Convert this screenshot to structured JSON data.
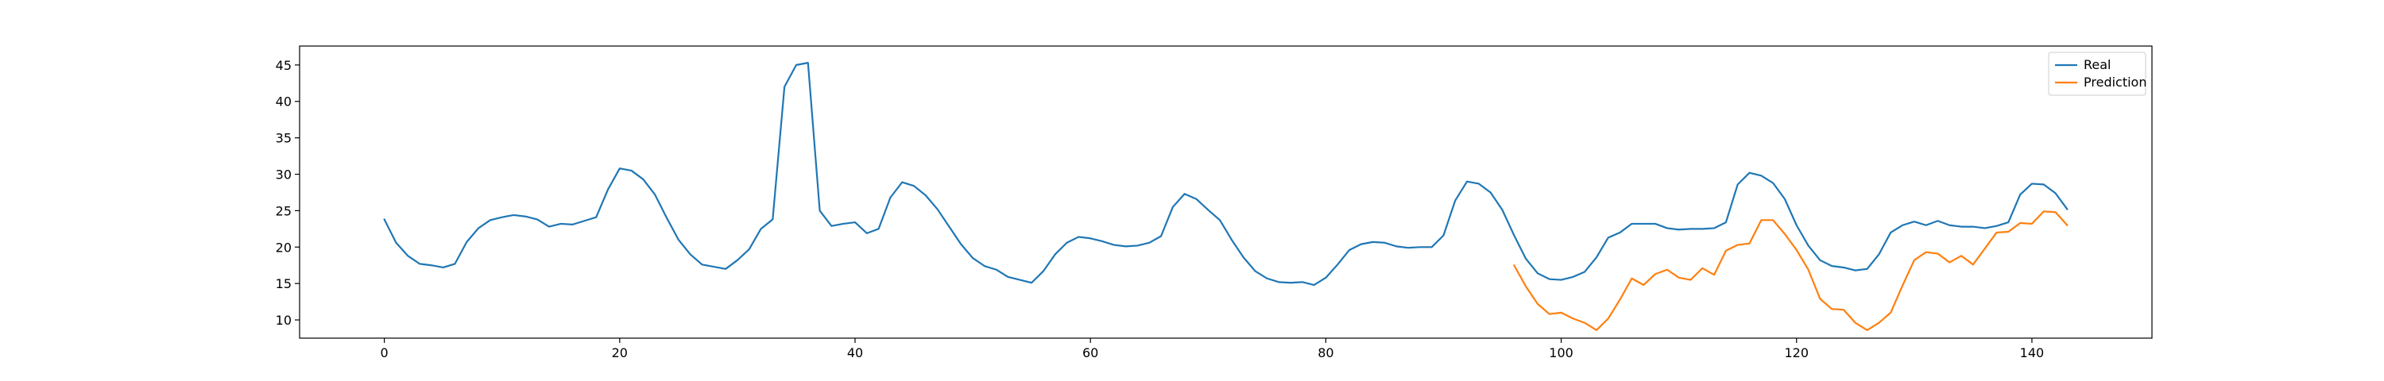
{
  "chart_data": {
    "type": "line",
    "title": "",
    "xlabel": "",
    "ylabel": "",
    "xlim": [
      -7.2,
      150.2
    ],
    "ylim": [
      7.5,
      47.6
    ],
    "xticks": [
      0,
      20,
      40,
      60,
      80,
      100,
      120,
      140
    ],
    "yticks": [
      10,
      15,
      20,
      25,
      30,
      35,
      40,
      45
    ],
    "grid": false,
    "legend_position": "top-right",
    "series": [
      {
        "name": "Real",
        "color": "#1f77b4",
        "x": [
          0,
          1,
          2,
          3,
          4,
          5,
          6,
          7,
          8,
          9,
          10,
          11,
          12,
          13,
          14,
          15,
          16,
          17,
          18,
          19,
          20,
          21,
          22,
          23,
          24,
          25,
          26,
          27,
          28,
          29,
          30,
          31,
          32,
          33,
          34,
          35,
          36,
          37,
          38,
          39,
          40,
          41,
          42,
          43,
          44,
          45,
          46,
          47,
          48,
          49,
          50,
          51,
          52,
          53,
          54,
          55,
          56,
          57,
          58,
          59,
          60,
          61,
          62,
          63,
          64,
          65,
          66,
          67,
          68,
          69,
          70,
          71,
          72,
          73,
          74,
          75,
          76,
          77,
          78,
          79,
          80,
          81,
          82,
          83,
          84,
          85,
          86,
          87,
          88,
          89,
          90,
          91,
          92,
          93,
          94,
          95,
          96,
          97,
          98,
          99,
          100,
          101,
          102,
          103,
          104,
          105,
          106,
          107,
          108,
          109,
          110,
          111,
          112,
          113,
          114,
          115,
          116,
          117,
          118,
          119,
          120,
          121,
          122,
          123,
          124,
          125,
          126,
          127,
          128,
          129,
          130,
          131,
          132,
          133,
          134,
          135,
          136,
          137,
          138,
          139,
          140,
          141,
          142,
          143
        ],
        "values": [
          23.8,
          20.6,
          18.8,
          17.7,
          17.5,
          17.2,
          17.7,
          20.7,
          22.6,
          23.7,
          24.1,
          24.4,
          24.2,
          23.8,
          22.8,
          23.2,
          23.1,
          23.6,
          24.1,
          27.9,
          30.8,
          30.5,
          29.3,
          27.2,
          24.0,
          21.0,
          19.0,
          17.6,
          17.3,
          17.0,
          18.2,
          19.7,
          22.5,
          23.8,
          42.0,
          45.0,
          45.3,
          25.0,
          22.9,
          23.2,
          23.4,
          21.9,
          22.5,
          26.8,
          28.9,
          28.4,
          27.1,
          25.2,
          22.8,
          20.4,
          18.5,
          17.4,
          16.9,
          15.9,
          15.5,
          15.1,
          16.7,
          19.0,
          20.6,
          21.4,
          21.2,
          20.8,
          20.3,
          20.1,
          20.2,
          20.6,
          21.5,
          25.5,
          27.3,
          26.6,
          25.1,
          23.7,
          21.0,
          18.6,
          16.7,
          15.7,
          15.2,
          15.1,
          15.2,
          14.8,
          15.8,
          17.6,
          19.6,
          20.4,
          20.7,
          20.6,
          20.1,
          19.9,
          20.0,
          20.0,
          21.6,
          26.4,
          29.0,
          28.7,
          27.5,
          25.1,
          21.6,
          18.4,
          16.4,
          15.6,
          15.5,
          15.9,
          16.6,
          18.6,
          21.3,
          22.0,
          23.2,
          23.2,
          23.2,
          22.6,
          22.4,
          22.5,
          22.5,
          22.6,
          23.4,
          28.6,
          30.2,
          29.8,
          28.8,
          26.6,
          23.0,
          20.2,
          18.2,
          17.4,
          17.2,
          16.8,
          17.0,
          19.0,
          22.0,
          23.0,
          23.5,
          23.0,
          23.6,
          23.0,
          22.8,
          22.8,
          22.6,
          22.9,
          23.4,
          27.2,
          28.7,
          28.6,
          27.4,
          25.2
        ]
      },
      {
        "name": "Prediction",
        "color": "#ff7f0e",
        "x": [
          96,
          97,
          98,
          99,
          100,
          101,
          102,
          103,
          104,
          105,
          106,
          107,
          108,
          109,
          110,
          111,
          112,
          113,
          114,
          115,
          116,
          117,
          118,
          119,
          120,
          121,
          122,
          123,
          124,
          125,
          126,
          127,
          128,
          129,
          130,
          131,
          132,
          133,
          134,
          135,
          136,
          137,
          138,
          139,
          140,
          141,
          142,
          143
        ],
        "values": [
          17.5,
          14.6,
          12.2,
          10.8,
          11.0,
          10.2,
          9.6,
          8.6,
          10.2,
          12.8,
          15.7,
          14.8,
          16.3,
          16.9,
          15.8,
          15.5,
          17.1,
          16.2,
          19.5,
          20.3,
          20.5,
          23.7,
          23.7,
          21.8,
          19.6,
          16.9,
          12.9,
          11.5,
          11.4,
          9.6,
          8.6,
          9.6,
          11.0,
          14.7,
          18.2,
          19.3,
          19.1,
          17.9,
          18.8,
          17.6,
          19.8,
          22.0,
          22.1,
          23.3,
          23.2,
          24.9,
          24.8,
          23.0
        ]
      }
    ]
  }
}
